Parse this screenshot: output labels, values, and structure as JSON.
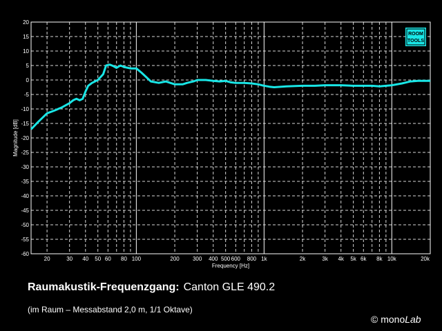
{
  "caption": {
    "title_bold": "Raumakustik-Frequenzgang:",
    "title_model": "Canton GLE 490.2",
    "subtitle": "(im Raum – Messabstand 2,0 m, 1/1 Oktave)",
    "brand_prefix": "© mono",
    "brand_italic": "Lab"
  },
  "logo": {
    "line1": "ROOM",
    "line2": "TOOLS"
  },
  "colors": {
    "background": "#000000",
    "curve": "#19e6e6",
    "grid": "#ffffff",
    "logo": "#19e6e6"
  },
  "chart_data": {
    "type": "line",
    "title": "",
    "xlabel": "Frequency [Hz]",
    "ylabel": "Magnitude [dB]",
    "x_scale": "log",
    "xlim": [
      15,
      20000
    ],
    "ylim": [
      -60,
      20
    ],
    "grid": true,
    "legend": "none",
    "x_ticks": [
      {
        "value": 20,
        "label": "20"
      },
      {
        "value": 30,
        "label": "30"
      },
      {
        "value": 40,
        "label": "40"
      },
      {
        "value": 50,
        "label": "50"
      },
      {
        "value": 60,
        "label": "60"
      },
      {
        "value": 80,
        "label": "80"
      },
      {
        "value": 100,
        "label": "100"
      },
      {
        "value": 200,
        "label": "200"
      },
      {
        "value": 300,
        "label": "300"
      },
      {
        "value": 400,
        "label": "400"
      },
      {
        "value": 500,
        "label": "500"
      },
      {
        "value": 600,
        "label": "600"
      },
      {
        "value": 800,
        "label": "800"
      },
      {
        "value": 1000,
        "label": "1k"
      },
      {
        "value": 2000,
        "label": "2k"
      },
      {
        "value": 3000,
        "label": "3k"
      },
      {
        "value": 4000,
        "label": "4k"
      },
      {
        "value": 5000,
        "label": "5k"
      },
      {
        "value": 6000,
        "label": "6k"
      },
      {
        "value": 8000,
        "label": "8k"
      },
      {
        "value": 10000,
        "label": "10k"
      },
      {
        "value": 20000,
        "label": "20k"
      }
    ],
    "y_ticks": [
      20,
      15,
      10,
      5,
      0,
      -5,
      -10,
      -15,
      -20,
      -25,
      -30,
      -35,
      -40,
      -45,
      -50,
      -55,
      -60
    ],
    "series": [
      {
        "x": [
          15,
          17,
          20,
          23,
          26,
          30,
          32,
          34,
          36,
          38,
          40,
          42,
          45,
          50,
          55,
          58,
          62,
          66,
          70,
          75,
          80,
          90,
          100,
          110,
          130,
          150,
          170,
          200,
          230,
          250,
          280,
          300,
          350,
          400,
          450,
          500,
          550,
          600,
          700,
          800,
          900,
          1000,
          1100,
          1200,
          1500,
          2000,
          2500,
          3000,
          4000,
          5000,
          6000,
          7000,
          8000,
          9000,
          10000,
          12000,
          14000,
          16000,
          20000
        ],
        "y": [
          -17,
          -14.5,
          -11.5,
          -10.5,
          -9.5,
          -8,
          -7,
          -6.5,
          -7,
          -6.5,
          -4,
          -2,
          -1,
          0,
          2,
          5,
          5.3,
          4.8,
          4.2,
          5,
          4.5,
          4,
          4,
          2.5,
          -0.5,
          -1,
          -0.5,
          -1.5,
          -1.5,
          -1,
          -0.5,
          0,
          0,
          -0.3,
          -0.5,
          -0.3,
          -0.8,
          -1,
          -1,
          -1.2,
          -1.5,
          -2,
          -2.3,
          -2.5,
          -2.2,
          -2,
          -2,
          -1.8,
          -1.8,
          -2,
          -2,
          -2,
          -2.2,
          -2,
          -1.8,
          -1.2,
          -0.5,
          -0.3,
          -0.3
        ]
      }
    ]
  }
}
